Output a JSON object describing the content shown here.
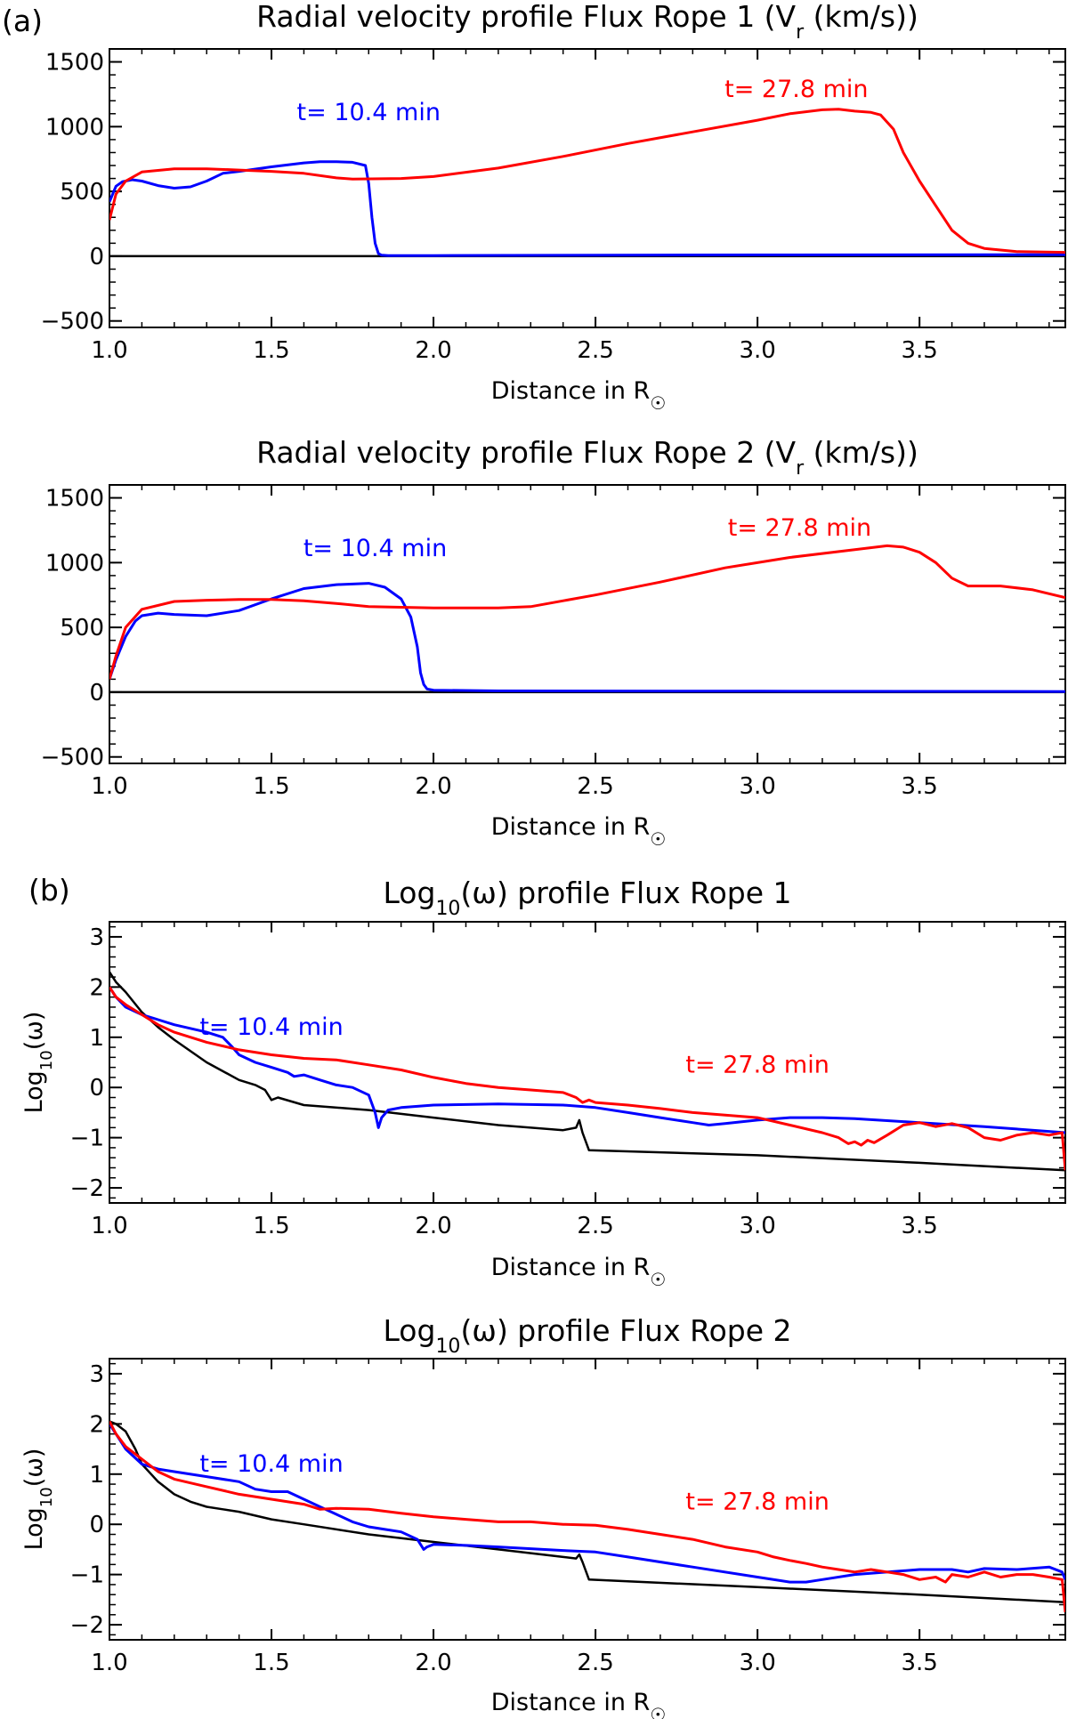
{
  "figure": {
    "label_a": "(a)",
    "label_b": "(b)"
  },
  "colors": {
    "early": "#0000ff",
    "late": "#ff0000",
    "baseline": "#000000",
    "axis": "#000000"
  },
  "chart_data": [
    {
      "type": "line",
      "title_main": "Radial velocity profile Flux Rope 1 (V",
      "title_sub": "r",
      "title_end": " (km/s))",
      "xlabel": "Distance in R",
      "xlabel_symbol": "☉",
      "ylabel": "",
      "xlim": [
        1.0,
        3.95
      ],
      "ylim": [
        -550,
        1600
      ],
      "xticks": [
        1.0,
        1.5,
        2.0,
        2.5,
        3.0,
        3.5
      ],
      "xtick_labels": [
        "1.0",
        "1.5",
        "2.0",
        "2.5",
        "3.0",
        "3.5"
      ],
      "yticks": [
        -500,
        0,
        500,
        1000,
        1500
      ],
      "ytick_labels": [
        "−500",
        "0",
        "500",
        "1000",
        "1500"
      ],
      "annotations": [
        {
          "text": "t= 10.4 min",
          "series": "early",
          "x": 1.8,
          "y": 1050
        },
        {
          "text": "t= 27.8 min",
          "series": "late",
          "x": 3.12,
          "y": 1230
        }
      ],
      "series": [
        {
          "name": "baseline",
          "color_key": "baseline",
          "x": [
            1.0,
            3.95
          ],
          "y": [
            0,
            0
          ]
        },
        {
          "name": "t= 10.4 min",
          "color_key": "early",
          "x": [
            1.0,
            1.02,
            1.04,
            1.07,
            1.1,
            1.15,
            1.2,
            1.25,
            1.3,
            1.35,
            1.4,
            1.5,
            1.6,
            1.65,
            1.7,
            1.75,
            1.79,
            1.8,
            1.81,
            1.82,
            1.83,
            1.84,
            1.86,
            2.0,
            3.0,
            3.95
          ],
          "y": [
            420,
            540,
            575,
            590,
            580,
            545,
            525,
            535,
            580,
            640,
            655,
            690,
            720,
            730,
            730,
            725,
            700,
            560,
            300,
            100,
            20,
            8,
            5,
            5,
            10,
            12
          ]
        },
        {
          "name": "t= 27.8 min",
          "color_key": "late",
          "x": [
            1.0,
            1.02,
            1.05,
            1.1,
            1.2,
            1.3,
            1.4,
            1.5,
            1.6,
            1.7,
            1.75,
            1.9,
            2.0,
            2.2,
            2.4,
            2.6,
            2.8,
            3.0,
            3.1,
            3.2,
            3.25,
            3.3,
            3.35,
            3.38,
            3.42,
            3.45,
            3.5,
            3.55,
            3.6,
            3.65,
            3.7,
            3.8,
            3.95
          ],
          "y": [
            280,
            480,
            580,
            650,
            675,
            675,
            665,
            655,
            640,
            605,
            595,
            600,
            615,
            680,
            770,
            870,
            960,
            1050,
            1100,
            1130,
            1135,
            1120,
            1110,
            1090,
            980,
            800,
            580,
            390,
            200,
            100,
            60,
            35,
            30
          ]
        }
      ]
    },
    {
      "type": "line",
      "title_main": "Radial velocity profile Flux Rope 2 (V",
      "title_sub": "r",
      "title_end": " (km/s))",
      "xlabel": "Distance in R",
      "xlabel_symbol": "☉",
      "ylabel": "",
      "xlim": [
        1.0,
        3.95
      ],
      "ylim": [
        -550,
        1600
      ],
      "xticks": [
        1.0,
        1.5,
        2.0,
        2.5,
        3.0,
        3.5
      ],
      "xtick_labels": [
        "1.0",
        "1.5",
        "2.0",
        "2.5",
        "3.0",
        "3.5"
      ],
      "yticks": [
        -500,
        0,
        500,
        1000,
        1500
      ],
      "ytick_labels": [
        "−500",
        "0",
        "500",
        "1000",
        "1500"
      ],
      "annotations": [
        {
          "text": "t= 10.4 min",
          "series": "early",
          "x": 1.82,
          "y": 1050
        },
        {
          "text": "t= 27.8 min",
          "series": "late",
          "x": 3.13,
          "y": 1210
        }
      ],
      "series": [
        {
          "name": "baseline",
          "color_key": "baseline",
          "x": [
            1.0,
            3.95
          ],
          "y": [
            0,
            0
          ]
        },
        {
          "name": "t= 10.4 min",
          "color_key": "early",
          "x": [
            1.0,
            1.02,
            1.05,
            1.08,
            1.1,
            1.15,
            1.2,
            1.3,
            1.4,
            1.5,
            1.6,
            1.7,
            1.8,
            1.85,
            1.9,
            1.93,
            1.95,
            1.96,
            1.97,
            1.98,
            2.0,
            2.2,
            3.0,
            3.95
          ],
          "y": [
            100,
            250,
            430,
            550,
            590,
            610,
            600,
            590,
            630,
            720,
            800,
            830,
            840,
            810,
            720,
            580,
            350,
            150,
            60,
            25,
            15,
            10,
            8,
            5
          ]
        },
        {
          "name": "t= 27.8 min",
          "color_key": "late",
          "x": [
            1.0,
            1.02,
            1.05,
            1.1,
            1.2,
            1.3,
            1.4,
            1.5,
            1.6,
            1.7,
            1.8,
            2.0,
            2.2,
            2.3,
            2.5,
            2.7,
            2.9,
            3.1,
            3.3,
            3.4,
            3.45,
            3.5,
            3.55,
            3.6,
            3.65,
            3.75,
            3.85,
            3.95
          ],
          "y": [
            100,
            280,
            500,
            640,
            700,
            710,
            715,
            715,
            705,
            685,
            660,
            650,
            650,
            660,
            750,
            850,
            960,
            1040,
            1100,
            1130,
            1120,
            1080,
            1000,
            880,
            820,
            820,
            790,
            730
          ]
        }
      ]
    },
    {
      "type": "line",
      "title_main": "Log",
      "title_sub": "10",
      "title_end": "(ω) profile Flux Rope 1",
      "xlabel": "Distance in R",
      "xlabel_symbol": "☉",
      "ylabel_main": "Log",
      "ylabel_sub": "10",
      "ylabel_end": "(ω)",
      "xlim": [
        1.0,
        3.95
      ],
      "ylim": [
        -2.3,
        3.3
      ],
      "xticks": [
        1.0,
        1.5,
        2.0,
        2.5,
        3.0,
        3.5
      ],
      "xtick_labels": [
        "1.0",
        "1.5",
        "2.0",
        "2.5",
        "3.0",
        "3.5"
      ],
      "yticks": [
        -2,
        -1,
        0,
        1,
        2,
        3
      ],
      "ytick_labels": [
        "−2",
        "−1",
        "0",
        "1",
        "2",
        "3"
      ],
      "annotations": [
        {
          "text": "t= 10.4 min",
          "series": "early",
          "x": 1.5,
          "y": 1.05
        },
        {
          "text": "t= 27.8 min",
          "series": "late",
          "x": 3.0,
          "y": 0.3
        }
      ],
      "series": [
        {
          "name": "baseline",
          "color_key": "baseline",
          "x": [
            1.0,
            1.02,
            1.05,
            1.1,
            1.15,
            1.2,
            1.3,
            1.4,
            1.45,
            1.48,
            1.5,
            1.52,
            1.6,
            1.8,
            2.0,
            2.2,
            2.4,
            2.44,
            2.45,
            2.46,
            2.48,
            3.0,
            3.5,
            3.95
          ],
          "y": [
            2.3,
            2.1,
            1.9,
            1.5,
            1.2,
            0.95,
            0.5,
            0.15,
            0.05,
            -0.05,
            -0.25,
            -0.2,
            -0.35,
            -0.45,
            -0.6,
            -0.75,
            -0.85,
            -0.8,
            -0.65,
            -0.9,
            -1.25,
            -1.35,
            -1.5,
            -1.65
          ]
        },
        {
          "name": "t= 10.4 min",
          "color_key": "early",
          "x": [
            1.0,
            1.02,
            1.05,
            1.1,
            1.15,
            1.2,
            1.3,
            1.35,
            1.38,
            1.4,
            1.45,
            1.5,
            1.55,
            1.57,
            1.6,
            1.65,
            1.7,
            1.75,
            1.8,
            1.82,
            1.83,
            1.84,
            1.86,
            1.9,
            2.0,
            2.2,
            2.4,
            2.5,
            2.6,
            2.7,
            2.8,
            2.85,
            2.9,
            3.0,
            3.1,
            3.2,
            3.3,
            3.5,
            3.7,
            3.95
          ],
          "y": [
            2.0,
            1.8,
            1.6,
            1.45,
            1.35,
            1.25,
            1.1,
            1.0,
            0.8,
            0.65,
            0.5,
            0.4,
            0.3,
            0.22,
            0.25,
            0.15,
            0.05,
            0.0,
            -0.15,
            -0.5,
            -0.8,
            -0.6,
            -0.45,
            -0.4,
            -0.35,
            -0.33,
            -0.35,
            -0.4,
            -0.5,
            -0.6,
            -0.7,
            -0.75,
            -0.72,
            -0.65,
            -0.6,
            -0.6,
            -0.62,
            -0.7,
            -0.78,
            -0.9
          ]
        },
        {
          "name": "t= 27.8 min",
          "color_key": "late",
          "x": [
            1.0,
            1.02,
            1.05,
            1.1,
            1.15,
            1.2,
            1.3,
            1.4,
            1.5,
            1.6,
            1.7,
            1.8,
            1.9,
            2.0,
            2.1,
            2.2,
            2.3,
            2.4,
            2.44,
            2.46,
            2.48,
            2.5,
            2.6,
            2.7,
            2.8,
            2.9,
            3.0,
            3.1,
            3.2,
            3.25,
            3.28,
            3.3,
            3.32,
            3.34,
            3.36,
            3.4,
            3.45,
            3.5,
            3.55,
            3.6,
            3.65,
            3.7,
            3.75,
            3.8,
            3.85,
            3.9,
            3.94,
            3.95
          ],
          "y": [
            2.0,
            1.8,
            1.65,
            1.45,
            1.25,
            1.1,
            0.9,
            0.75,
            0.65,
            0.58,
            0.55,
            0.45,
            0.35,
            0.2,
            0.08,
            0.0,
            -0.05,
            -0.1,
            -0.2,
            -0.3,
            -0.25,
            -0.3,
            -0.35,
            -0.42,
            -0.5,
            -0.55,
            -0.6,
            -0.75,
            -0.9,
            -1.0,
            -1.12,
            -1.08,
            -1.15,
            -1.05,
            -1.1,
            -0.95,
            -0.75,
            -0.7,
            -0.78,
            -0.72,
            -0.8,
            -1.0,
            -1.05,
            -0.95,
            -0.9,
            -0.95,
            -0.9,
            -1.65
          ]
        }
      ]
    },
    {
      "type": "line",
      "title_main": "Log",
      "title_sub": "10",
      "title_end": "(ω) profile Flux Rope 2",
      "xlabel": "Distance in R",
      "xlabel_symbol": "☉",
      "ylabel_main": "Log",
      "ylabel_sub": "10",
      "ylabel_end": "(ω)",
      "xlim": [
        1.0,
        3.95
      ],
      "ylim": [
        -2.3,
        3.3
      ],
      "xticks": [
        1.0,
        1.5,
        2.0,
        2.5,
        3.0,
        3.5
      ],
      "xtick_labels": [
        "1.0",
        "1.5",
        "2.0",
        "2.5",
        "3.0",
        "3.5"
      ],
      "yticks": [
        -2,
        -1,
        0,
        1,
        2,
        3
      ],
      "ytick_labels": [
        "−2",
        "−1",
        "0",
        "1",
        "2",
        "3"
      ],
      "annotations": [
        {
          "text": "t= 10.4 min",
          "series": "early",
          "x": 1.5,
          "y": 1.05
        },
        {
          "text": "t= 27.8 min",
          "series": "late",
          "x": 3.0,
          "y": 0.3
        }
      ],
      "series": [
        {
          "name": "baseline",
          "color_key": "baseline",
          "x": [
            1.0,
            1.02,
            1.05,
            1.08,
            1.1,
            1.15,
            1.2,
            1.25,
            1.3,
            1.35,
            1.4,
            1.5,
            1.6,
            1.8,
            2.0,
            2.2,
            2.4,
            2.44,
            2.45,
            2.46,
            2.48,
            3.0,
            3.5,
            3.95
          ],
          "y": [
            2.05,
            2.0,
            1.85,
            1.5,
            1.2,
            0.85,
            0.6,
            0.45,
            0.35,
            0.3,
            0.25,
            0.1,
            0.0,
            -0.2,
            -0.35,
            -0.5,
            -0.65,
            -0.68,
            -0.6,
            -0.75,
            -1.1,
            -1.25,
            -1.4,
            -1.55
          ]
        },
        {
          "name": "t= 10.4 min",
          "color_key": "early",
          "x": [
            1.0,
            1.02,
            1.05,
            1.1,
            1.15,
            1.2,
            1.3,
            1.4,
            1.45,
            1.5,
            1.55,
            1.6,
            1.65,
            1.7,
            1.75,
            1.8,
            1.85,
            1.9,
            1.95,
            1.97,
            1.98,
            2.0,
            2.1,
            2.2,
            2.4,
            2.5,
            2.6,
            2.8,
            3.0,
            3.1,
            3.15,
            3.2,
            3.3,
            3.5,
            3.6,
            3.65,
            3.7,
            3.8,
            3.9,
            3.94,
            3.95
          ],
          "y": [
            2.0,
            1.8,
            1.5,
            1.2,
            1.1,
            1.05,
            0.95,
            0.85,
            0.7,
            0.65,
            0.65,
            0.5,
            0.35,
            0.2,
            0.05,
            -0.05,
            -0.1,
            -0.15,
            -0.3,
            -0.5,
            -0.45,
            -0.4,
            -0.42,
            -0.45,
            -0.52,
            -0.55,
            -0.65,
            -0.85,
            -1.05,
            -1.15,
            -1.15,
            -1.1,
            -1.0,
            -0.9,
            -0.9,
            -0.95,
            -0.88,
            -0.9,
            -0.85,
            -0.95,
            -1.1
          ]
        },
        {
          "name": "t= 27.8 min",
          "color_key": "late",
          "x": [
            1.0,
            1.02,
            1.05,
            1.1,
            1.15,
            1.2,
            1.3,
            1.4,
            1.5,
            1.6,
            1.65,
            1.7,
            1.8,
            1.9,
            2.0,
            2.1,
            2.2,
            2.3,
            2.4,
            2.5,
            2.6,
            2.7,
            2.8,
            2.9,
            3.0,
            3.05,
            3.1,
            3.15,
            3.2,
            3.25,
            3.3,
            3.35,
            3.4,
            3.45,
            3.5,
            3.55,
            3.58,
            3.6,
            3.65,
            3.7,
            3.75,
            3.8,
            3.85,
            3.9,
            3.94,
            3.95
          ],
          "y": [
            2.05,
            1.8,
            1.55,
            1.3,
            1.05,
            0.9,
            0.75,
            0.6,
            0.5,
            0.4,
            0.3,
            0.32,
            0.3,
            0.22,
            0.15,
            0.1,
            0.05,
            0.05,
            0.0,
            -0.02,
            -0.1,
            -0.2,
            -0.3,
            -0.45,
            -0.55,
            -0.65,
            -0.72,
            -0.78,
            -0.85,
            -0.9,
            -0.95,
            -0.9,
            -0.95,
            -1.0,
            -1.1,
            -1.05,
            -1.15,
            -1.0,
            -1.05,
            -0.95,
            -1.05,
            -1.0,
            -1.0,
            -1.05,
            -1.1,
            -1.75
          ]
        }
      ]
    }
  ]
}
